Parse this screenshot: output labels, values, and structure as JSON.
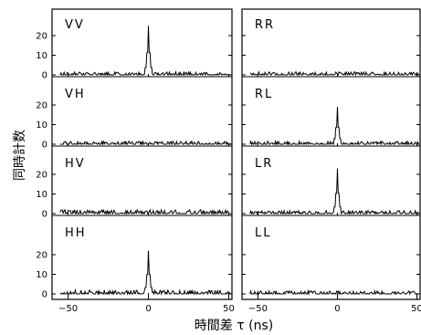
{
  "chart_data": {
    "type": "line",
    "ylabel": "同時計数",
    "xlabel": "時間差 τ (ns)",
    "xlim": [
      -60,
      52
    ],
    "ylim": [
      0,
      28
    ],
    "x_ticks": [
      -50,
      0,
      50
    ],
    "y_ticks": [
      0,
      10,
      20
    ],
    "panels": [
      {
        "name": "VV",
        "column": 0,
        "row": 0,
        "peak": 25,
        "baseline": 1.5
      },
      {
        "name": "VH",
        "column": 0,
        "row": 1,
        "peak": 0,
        "baseline": 1.5
      },
      {
        "name": "HV",
        "column": 0,
        "row": 2,
        "peak": 0,
        "baseline": 2
      },
      {
        "name": "HH",
        "column": 0,
        "row": 3,
        "peak": 22,
        "baseline": 2
      },
      {
        "name": "RR",
        "column": 1,
        "row": 0,
        "peak": 0,
        "baseline": 1.5
      },
      {
        "name": "RL",
        "column": 1,
        "row": 1,
        "peak": 19,
        "baseline": 1.5
      },
      {
        "name": "LR",
        "column": 1,
        "row": 2,
        "peak": 23,
        "baseline": 1.5
      },
      {
        "name": "LL",
        "column": 1,
        "row": 3,
        "peak": 0,
        "baseline": 1.5
      }
    ]
  }
}
